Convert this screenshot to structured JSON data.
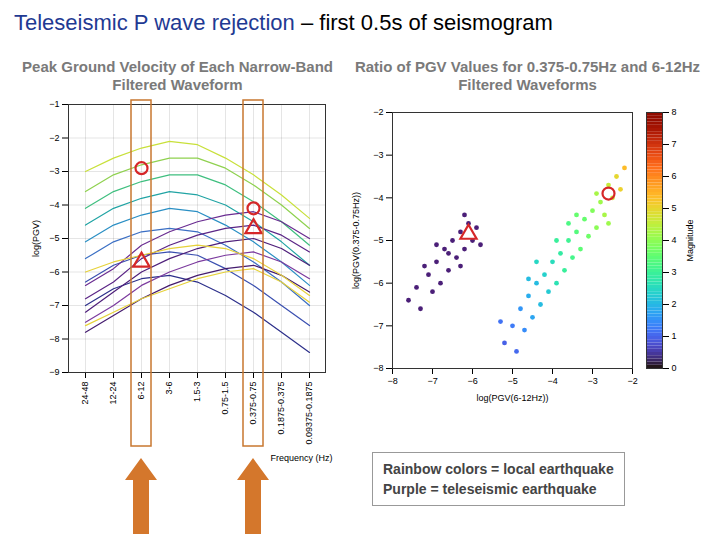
{
  "header": {
    "title": "Teleseismic P wave rejection",
    "subtitle": "– first 0.5s of seismogram"
  },
  "caption": [
    "Rainbow colors = local earthquake",
    "Purple = teleseismic earthquake"
  ],
  "chart_data": [
    {
      "type": "line",
      "title": "Peak Ground Velocity of Each Narrow-Band Filtered Waveform",
      "xlabel": "Frequency (Hz)",
      "ylabel": "log(PGV)",
      "categories": [
        "24-48",
        "12-24",
        "6-12",
        "3-6",
        "1.5-3",
        "0.75-1.5",
        "0.375-0.75",
        "0.1875-0.375",
        "0.09375-0.1875"
      ],
      "series": [
        {
          "color": "#c8e03a",
          "values": [
            -3.0,
            -2.6,
            -2.3,
            -2.1,
            -2.2,
            -2.6,
            -3.1,
            -3.7,
            -4.4
          ]
        },
        {
          "color": "#8fd14f",
          "values": [
            -3.6,
            -3.1,
            -2.8,
            -2.6,
            -2.6,
            -2.9,
            -3.4,
            -4.0,
            -4.7
          ]
        },
        {
          "color": "#3fbf7f",
          "values": [
            -4.1,
            -3.6,
            -3.3,
            -3.1,
            -3.1,
            -3.4,
            -3.9,
            -4.5,
            -5.2
          ]
        },
        {
          "color": "#21a4a4",
          "values": [
            -4.6,
            -4.1,
            -3.8,
            -3.6,
            -3.7,
            -4.0,
            -4.5,
            -5.1,
            -5.8
          ]
        },
        {
          "color": "#2a8fc4",
          "values": [
            -5.1,
            -4.6,
            -4.3,
            -4.1,
            -4.2,
            -4.6,
            -5.1,
            -5.7,
            -6.4
          ]
        },
        {
          "color": "#3b6fc4",
          "values": [
            -5.6,
            -5.1,
            -4.8,
            -4.7,
            -4.8,
            -5.2,
            -5.7,
            -6.3,
            -7.0
          ]
        },
        {
          "color": "#3a4fb0",
          "values": [
            -6.3,
            -5.8,
            -5.5,
            -5.4,
            -5.5,
            -5.9,
            -6.4,
            -7.0,
            -7.6
          ]
        },
        {
          "color": "#2c2f8a",
          "values": [
            -7.0,
            -6.5,
            -6.2,
            -6.1,
            -6.3,
            -6.7,
            -7.2,
            -7.8,
            -8.4
          ]
        },
        {
          "color": "#6a2c91",
          "values": [
            -6.4,
            -5.9,
            -5.2,
            -4.8,
            -4.5,
            -4.3,
            -4.2,
            -4.5,
            -5.0
          ]
        },
        {
          "color": "#5b2586",
          "values": [
            -6.8,
            -6.3,
            -5.6,
            -5.2,
            -4.9,
            -4.7,
            -4.6,
            -4.9,
            -5.4
          ]
        },
        {
          "color": "#4e1f7a",
          "values": [
            -7.2,
            -6.6,
            -6.0,
            -5.6,
            -5.3,
            -5.1,
            -5.0,
            -5.3,
            -5.8
          ]
        },
        {
          "color": "#7b3a9e",
          "values": [
            -7.5,
            -7.0,
            -6.4,
            -6.0,
            -5.7,
            -5.5,
            -5.4,
            -5.7,
            -6.2
          ]
        },
        {
          "color": "#441b6e",
          "values": [
            -7.8,
            -7.3,
            -6.8,
            -6.4,
            -6.1,
            -5.9,
            -5.8,
            -6.1,
            -6.6
          ]
        },
        {
          "color": "#e6d23a",
          "values": [
            -6.0,
            -5.7,
            -5.5,
            -5.3,
            -5.2,
            -5.3,
            -5.6,
            -6.1,
            -6.7
          ]
        },
        {
          "color": "#e6d23a",
          "values": [
            -7.6,
            -7.2,
            -6.8,
            -6.5,
            -6.2,
            -6.0,
            -5.9,
            -6.3,
            -6.9
          ]
        }
      ],
      "annotations": [
        {
          "category": "6-12",
          "value": -2.9,
          "marker": "circle",
          "color": "#d62728"
        },
        {
          "category": "6-12",
          "value": -5.7,
          "marker": "triangle",
          "color": "#d62728"
        },
        {
          "category": "0.375-0.75",
          "value": -4.1,
          "marker": "circle",
          "color": "#d62728"
        },
        {
          "category": "0.375-0.75",
          "value": -4.7,
          "marker": "triangle",
          "color": "#d62728"
        }
      ],
      "ylim": [
        -9,
        -1
      ],
      "yticks": [
        -9,
        -8,
        -7,
        -6,
        -5,
        -4,
        -3,
        -2,
        -1
      ],
      "grid": true
    },
    {
      "type": "scatter",
      "title": "Ratio of PGV Values for 0.375-0.75Hz and 6-12Hz Filtered Waveforms",
      "xlabel": "log(PGV(6-12Hz))",
      "ylabel": "log(PGV(0.375-0.75Hz))",
      "series": [
        {
          "x": [
            -5.2,
            -5.0,
            -4.9,
            -4.8,
            -4.7,
            -4.6,
            -4.5,
            -4.4,
            -4.3,
            -4.2,
            -4.1,
            -4.0,
            -3.9,
            -3.8,
            -3.7,
            -3.6,
            -3.5,
            -3.4,
            -3.3,
            -3.2,
            -3.1,
            -3.0,
            -2.9,
            -2.8,
            -2.7,
            -2.6,
            -2.5,
            -2.4,
            -2.3,
            -2.2,
            -4.4,
            -3.9,
            -3.4,
            -2.9,
            -4.6,
            -5.3,
            -3.6,
            -2.6
          ],
          "y": [
            -7.4,
            -7.0,
            -7.6,
            -6.6,
            -7.1,
            -6.3,
            -6.8,
            -6.0,
            -6.5,
            -5.8,
            -6.2,
            -5.5,
            -6.0,
            -5.3,
            -5.7,
            -5.0,
            -5.4,
            -4.8,
            -5.2,
            -4.5,
            -4.9,
            -4.3,
            -4.7,
            -4.1,
            -4.4,
            -3.7,
            -4.0,
            -3.5,
            -3.8,
            -3.3,
            -5.5,
            -5.0,
            -4.4,
            -3.9,
            -5.9,
            -6.9,
            -4.6,
            -4.6
          ],
          "magnitude": [
            0.9,
            1.2,
            1.0,
            1.5,
            1.4,
            1.8,
            1.7,
            2.0,
            2.0,
            2.3,
            2.2,
            2.5,
            2.6,
            2.8,
            2.9,
            3.0,
            3.1,
            3.3,
            3.4,
            3.5,
            3.6,
            3.8,
            3.9,
            4.1,
            4.2,
            4.5,
            4.6,
            4.9,
            5.0,
            5.3,
            2.4,
            2.9,
            3.5,
            4.2,
            2.0,
            1.1,
            3.2,
            4.1
          ]
        },
        {
          "color": "#4b1f78",
          "x": [
            -7.6,
            -7.4,
            -7.3,
            -7.1,
            -7.0,
            -6.9,
            -6.8,
            -6.7,
            -6.6,
            -6.5,
            -6.4,
            -6.3,
            -6.2,
            -6.1,
            -6.0,
            -5.9,
            -6.6,
            -6.9,
            -7.2,
            -6.3,
            -5.8,
            -6.2
          ],
          "y": [
            -6.4,
            -6.1,
            -6.6,
            -5.8,
            -6.2,
            -5.5,
            -6.0,
            -5.2,
            -5.7,
            -5.0,
            -5.4,
            -4.8,
            -5.2,
            -4.6,
            -5.0,
            -4.7,
            -5.3,
            -5.1,
            -5.6,
            -5.6,
            -5.1,
            -4.4
          ]
        }
      ],
      "annotations": [
        {
          "x": -2.6,
          "y": -3.9,
          "marker": "circle",
          "color": "#d62728"
        },
        {
          "x": -6.1,
          "y": -4.85,
          "marker": "triangle",
          "color": "#d62728"
        }
      ],
      "colorbar": {
        "label": "Magnitude",
        "range": [
          0,
          8
        ],
        "ticks": [
          0,
          1,
          2,
          3,
          4,
          5,
          6,
          7,
          8
        ]
      },
      "xlim": [
        -8,
        -2
      ],
      "xticks": [
        -8,
        -7,
        -6,
        -5,
        -4,
        -3,
        -2
      ],
      "ylim": [
        -8,
        -2
      ],
      "yticks": [
        -8,
        -7,
        -6,
        -5,
        -4,
        -3,
        -2
      ],
      "grid": false
    }
  ]
}
